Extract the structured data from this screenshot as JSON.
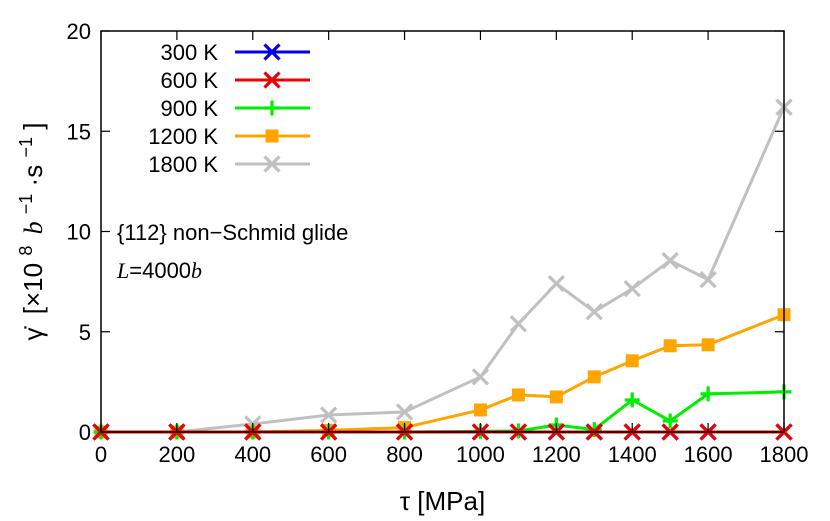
{
  "chart_data": {
    "type": "line",
    "x": [
      0,
      200,
      400,
      600,
      800,
      1000,
      1100,
      1200,
      1300,
      1400,
      1500,
      1600,
      1800
    ],
    "xlim": [
      0,
      1800
    ],
    "ylim": [
      0,
      20
    ],
    "xticks": [
      "0",
      "200",
      "400",
      "600",
      "800",
      "1000",
      "1200",
      "1400",
      "1600",
      "1800"
    ],
    "xtick_values": [
      0,
      200,
      400,
      600,
      800,
      1000,
      1200,
      1400,
      1600,
      1800
    ],
    "yticks": [
      "0",
      "5",
      "10",
      "15",
      "20"
    ],
    "ytick_values": [
      0,
      5,
      10,
      15,
      20
    ],
    "xlabel": "τ [MPa]",
    "ylabel": {
      "symbol": "γ̇",
      "prefix": "[×10",
      "exp": "8",
      "unit_var": "b",
      "unit_exp1": "−1",
      "unit_mid": "·s",
      "unit_exp2": "−1",
      "suffix": "]"
    },
    "grid": false,
    "legend_position": "top-left",
    "annotations": {
      "glide": "{112} non−Schmid glide",
      "length_var": "L",
      "length_eq": "=4000",
      "length_unit": "b"
    },
    "series": [
      {
        "name": "300 K",
        "color": "#0000ee",
        "marker": "x",
        "values": [
          0,
          0,
          0,
          0,
          0,
          0,
          0,
          0,
          0,
          0,
          0,
          0,
          0
        ]
      },
      {
        "name": "600 K",
        "color": "#ee0000",
        "marker": "x",
        "values": [
          0,
          0,
          0,
          0,
          0,
          0,
          0,
          0,
          0,
          0,
          0,
          0,
          0
        ]
      },
      {
        "name": "900 K",
        "color": "#00ee00",
        "marker": "plus",
        "values": [
          0,
          0,
          0,
          0,
          0,
          0.03,
          0.05,
          0.35,
          0.12,
          1.6,
          0.55,
          1.9,
          2.0
        ]
      },
      {
        "name": "1200 K",
        "color": "#ffa500",
        "marker": "square",
        "values": [
          0,
          0,
          0,
          0.08,
          0.22,
          1.1,
          1.85,
          1.75,
          2.75,
          3.55,
          4.3,
          4.35,
          5.85
        ]
      },
      {
        "name": "1800 K",
        "color": "#c0c0c0",
        "marker": "x",
        "values": [
          0,
          0,
          0.4,
          0.85,
          1.0,
          2.75,
          5.4,
          7.4,
          6.0,
          7.15,
          8.55,
          7.6,
          16.2
        ]
      }
    ]
  }
}
